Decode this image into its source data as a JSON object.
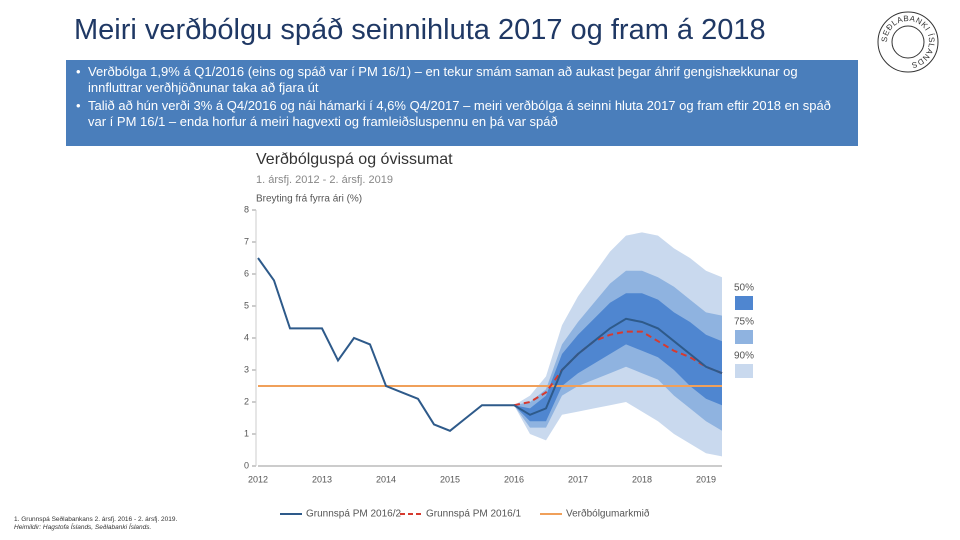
{
  "slide": {
    "title": "Meiri verðbólgu spáð seinnihluta 2017 og fram á 2018",
    "bullets": [
      "Verðbólga 1,9% á Q1/2016 (eins og spáð var í PM 16/1) – en tekur smám saman að aukast þegar áhrif gengishækkunar og innfluttrar verðhjöðnunar taka að fjara út",
      "Talið að hún verði 3% á Q4/2016 og nái hámarki í 4,6% Q4/2017 – meiri verðbólga á seinni hluta 2017 og fram eftir 2018 en spáð var í PM 16/1 – enda horfur á meiri hagvexti og framleiðsluspennu en þá var spáð"
    ],
    "footnotes": [
      "1. Grunnspá Seðlabankans 2. ársfj. 2016 - 2. ársfj. 2019.",
      "Heimildir: Hagstofa Íslands, Seðlabanki Íslands."
    ],
    "logo": "SEÐLABANKI ÍSLANDS"
  },
  "chart_data": {
    "type": "line",
    "title": "Verðbólguspá og óvissumat",
    "subtitle": "1. ársfj. 2012 - 2. ársfj. 2019",
    "y_label": "Breyting frá fyrra ári (%)",
    "categories": [
      "2012",
      null,
      null,
      null,
      "2013",
      null,
      null,
      null,
      "2014",
      null,
      null,
      null,
      "2015",
      null,
      null,
      null,
      "2016",
      null,
      null,
      null,
      "2017",
      null,
      null,
      null,
      "2018",
      null,
      null,
      null,
      "2019",
      null
    ],
    "ylim": [
      0,
      8
    ],
    "yticks": [
      0,
      1,
      2,
      3,
      4,
      5,
      6,
      7,
      8
    ],
    "grid": false,
    "bands": [
      {
        "name": "90%",
        "color": "#c9d9ee",
        "upper": [
          null,
          null,
          null,
          null,
          null,
          null,
          null,
          null,
          null,
          null,
          null,
          null,
          null,
          null,
          null,
          null,
          1.9,
          2.2,
          2.8,
          4.4,
          5.3,
          6.0,
          6.7,
          7.2,
          7.3,
          7.2,
          6.8,
          6.5,
          6.1,
          5.9
        ],
        "lower": [
          null,
          null,
          null,
          null,
          null,
          null,
          null,
          null,
          null,
          null,
          null,
          null,
          null,
          null,
          null,
          null,
          1.9,
          1.0,
          0.8,
          1.6,
          1.7,
          1.8,
          1.9,
          2.0,
          1.7,
          1.4,
          1.0,
          0.7,
          0.4,
          0.3
        ]
      },
      {
        "name": "75%",
        "color": "#8fb3e0",
        "upper": [
          null,
          null,
          null,
          null,
          null,
          null,
          null,
          null,
          null,
          null,
          null,
          null,
          null,
          null,
          null,
          null,
          1.9,
          2.0,
          2.4,
          3.8,
          4.5,
          5.1,
          5.7,
          6.1,
          6.1,
          5.9,
          5.6,
          5.2,
          4.8,
          4.7
        ],
        "lower": [
          null,
          null,
          null,
          null,
          null,
          null,
          null,
          null,
          null,
          null,
          null,
          null,
          null,
          null,
          null,
          null,
          1.9,
          1.2,
          1.2,
          2.2,
          2.5,
          2.7,
          2.9,
          3.1,
          2.9,
          2.7,
          2.2,
          1.8,
          1.4,
          1.1
        ]
      },
      {
        "name": "50%",
        "color": "#4f86d0",
        "upper": [
          null,
          null,
          null,
          null,
          null,
          null,
          null,
          null,
          null,
          null,
          null,
          null,
          null,
          null,
          null,
          null,
          1.9,
          1.8,
          2.2,
          3.5,
          4.1,
          4.6,
          5.1,
          5.4,
          5.4,
          5.2,
          4.8,
          4.5,
          4.1,
          3.9
        ],
        "lower": [
          null,
          null,
          null,
          null,
          null,
          null,
          null,
          null,
          null,
          null,
          null,
          null,
          null,
          null,
          null,
          null,
          1.9,
          1.4,
          1.4,
          2.5,
          2.9,
          3.2,
          3.5,
          3.8,
          3.6,
          3.4,
          3.0,
          2.5,
          2.1,
          1.9
        ]
      }
    ],
    "series": [
      {
        "name": "Grunnspá PM 2016/2",
        "color": "#2e5a8a",
        "dashed": false,
        "values": [
          6.5,
          5.8,
          4.3,
          4.3,
          4.3,
          3.3,
          4.0,
          3.8,
          2.5,
          2.3,
          2.1,
          1.3,
          1.1,
          1.5,
          1.9,
          1.9,
          1.9,
          1.6,
          1.8,
          3.0,
          3.5,
          3.9,
          4.3,
          4.6,
          4.5,
          4.3,
          3.9,
          3.5,
          3.1,
          2.9
        ]
      },
      {
        "name": "Grunnspá PM 2016/1",
        "color": "#d63a2f",
        "dashed": true,
        "values": [
          null,
          null,
          null,
          null,
          null,
          null,
          null,
          null,
          null,
          null,
          null,
          null,
          null,
          null,
          null,
          null,
          1.9,
          2.0,
          2.3,
          3.0,
          3.5,
          3.9,
          4.1,
          4.2,
          4.2,
          3.9,
          3.6,
          3.4,
          3.1,
          2.9
        ]
      },
      {
        "name": "Verðbólgumarkmið",
        "color": "#f0a05a",
        "dashed": false,
        "values": [
          2.5,
          2.5,
          2.5,
          2.5,
          2.5,
          2.5,
          2.5,
          2.5,
          2.5,
          2.5,
          2.5,
          2.5,
          2.5,
          2.5,
          2.5,
          2.5,
          2.5,
          2.5,
          2.5,
          2.5,
          2.5,
          2.5,
          2.5,
          2.5,
          2.5,
          2.5,
          2.5,
          2.5,
          2.5,
          2.5
        ]
      }
    ]
  }
}
